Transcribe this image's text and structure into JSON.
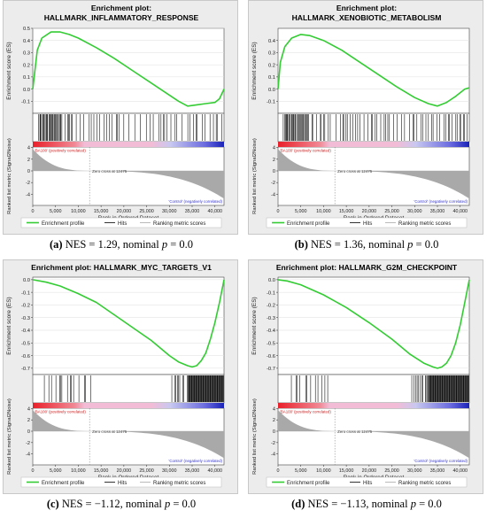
{
  "chart_data": [
    {
      "type": "line",
      "label": "a",
      "title_line1": "Enrichment plot:",
      "title_line2": "HALLMARK_INFLAMMATORY_RESPONSE",
      "caption": {
        "label": "(a)",
        "text_nes": "NES = 1.29, nominal",
        "p_symbol": "p",
        "text_p": "= 0.0"
      },
      "ylabel": "Enrichment score (ES)",
      "ylim": [
        -0.2,
        0.5
      ],
      "yticks": [
        0.5,
        0.4,
        0.3,
        0.2,
        0.1,
        0.0,
        -0.1
      ],
      "x": [
        0,
        1000,
        2000,
        4000,
        6000,
        8000,
        10000,
        14000,
        18000,
        22000,
        26000,
        30000,
        32000,
        34000,
        36000,
        38000,
        40000,
        41000,
        42000
      ],
      "es": [
        0.0,
        0.32,
        0.42,
        0.47,
        0.47,
        0.45,
        0.42,
        0.34,
        0.25,
        0.15,
        0.05,
        -0.05,
        -0.1,
        -0.14,
        -0.13,
        -0.12,
        -0.11,
        -0.08,
        0.0
      ],
      "hits_segments": [
        [
          1000,
          6500,
          0.9
        ],
        [
          6500,
          9000,
          0.6
        ],
        [
          9000,
          17000,
          0.35
        ],
        [
          17000,
          24000,
          0.3
        ],
        [
          24000,
          42000,
          0.35
        ]
      ],
      "bar_color_neutral": "#f2bcd6",
      "pos_label": "'BA100' (positively correlated)",
      "neg_label": "'Control' (negatively correlated)",
      "zero_cross": "Zero cross at 12475",
      "metric_ylabel": "Ranked list metric (Signal2Noise)",
      "metric_yticks": [
        "4",
        "2",
        "0",
        "-2",
        "-4"
      ],
      "xlabel": "Rank in Ordered Dataset",
      "xticks": [
        "0",
        "5,000",
        "10,000",
        "15,000",
        "20,000",
        "25,000",
        "30,000",
        "35,000",
        "40,000"
      ],
      "legend": [
        "Enrichment profile",
        "Hits",
        "Ranking metric scores"
      ],
      "colors": {
        "es": "#33cc33",
        "pos": "#e8202a",
        "neg": "#1a23b8",
        "metric": "#a9a9a9",
        "neg_label": "#3333cc",
        "pos_label": "#cc2222"
      }
    },
    {
      "type": "line",
      "label": "b",
      "title_line1": "Enrichment plot:",
      "title_line2": "HALLMARK_XENOBIOTIC_METABOLISM",
      "caption": {
        "label": "(b)",
        "text_nes": "NES = 1.36, nominal",
        "p_symbol": "p",
        "text_p": "= 0.0"
      },
      "ylabel": "Enrichment score (ES)",
      "ylim": [
        -0.2,
        0.5
      ],
      "yticks": [
        0.4,
        0.3,
        0.2,
        0.1,
        0.0,
        -0.1
      ],
      "x": [
        0,
        500,
        1500,
        3000,
        5000,
        7000,
        10000,
        14000,
        18000,
        22000,
        26000,
        30000,
        33000,
        35000,
        37000,
        39000,
        41000,
        42000
      ],
      "es": [
        0.0,
        0.22,
        0.35,
        0.42,
        0.45,
        0.44,
        0.4,
        0.32,
        0.22,
        0.12,
        0.02,
        -0.07,
        -0.12,
        -0.14,
        -0.11,
        -0.06,
        0.0,
        0.01
      ],
      "hits_segments": [
        [
          1000,
          7000,
          0.9
        ],
        [
          7000,
          12000,
          0.5
        ],
        [
          12000,
          19000,
          0.45
        ],
        [
          19000,
          28000,
          0.4
        ],
        [
          28000,
          42000,
          0.5
        ]
      ],
      "bar_color_neutral": "#f2bcd6",
      "pos_label": "'BA100' (positively correlated)",
      "neg_label": "'Control' (negatively correlated)",
      "zero_cross": "Zero cross at 12475",
      "metric_ylabel": "Ranked list metric (Signal2Noise)",
      "metric_yticks": [
        "4",
        "2",
        "0",
        "-2",
        "-4"
      ],
      "xlabel": "Rank in Ordered Dataset",
      "xticks": [
        "0",
        "5,000",
        "10,000",
        "15,000",
        "20,000",
        "25,000",
        "30,000",
        "35,000",
        "40,000"
      ],
      "legend": [
        "Enrichment profile",
        "Hits",
        "Ranking metric scores"
      ],
      "colors": {
        "es": "#33cc33",
        "pos": "#e8202a",
        "neg": "#1a23b8",
        "metric": "#a9a9a9",
        "neg_label": "#3333cc",
        "pos_label": "#cc2222"
      }
    },
    {
      "type": "line",
      "label": "c",
      "title_line1": "Enrichment plot: HALLMARK_MYC_TARGETS_V1",
      "title_line2": "",
      "caption": {
        "label": "(c)",
        "text_nes": "NES = −1.12, nominal",
        "p_symbol": "p",
        "text_p": "= 0.0"
      },
      "ylabel": "Enrichment score (ES)",
      "ylim": [
        -0.75,
        0.02
      ],
      "yticks": [
        0.0,
        -0.1,
        -0.2,
        -0.3,
        -0.4,
        -0.5,
        -0.6,
        -0.7
      ],
      "x": [
        0,
        3000,
        6000,
        10000,
        14000,
        18000,
        22000,
        26000,
        30000,
        32000,
        34000,
        35000,
        36000,
        37000,
        38000,
        39000,
        40000,
        41000,
        42000
      ],
      "es": [
        0.0,
        -0.02,
        -0.05,
        -0.11,
        -0.18,
        -0.28,
        -0.38,
        -0.48,
        -0.6,
        -0.65,
        -0.68,
        -0.69,
        -0.68,
        -0.64,
        -0.58,
        -0.47,
        -0.34,
        -0.18,
        0.0
      ],
      "hits_segments": [
        [
          2000,
          13000,
          0.35
        ],
        [
          30000,
          34000,
          0.6
        ],
        [
          34000,
          42000,
          1.0
        ]
      ],
      "bar_color_neutral": "#f2bcd6",
      "pos_label": "'BA100' (positively correlated)",
      "neg_label": "'Control' (negatively correlated)",
      "zero_cross": "Zero cross at 12475",
      "metric_ylabel": "Ranked list metric (Signal2Noise)",
      "metric_yticks": [
        "4",
        "2",
        "0",
        "-2",
        "-4"
      ],
      "xlabel": "Rank in Ordered Dataset",
      "xticks": [
        "0",
        "5,000",
        "10,000",
        "15,000",
        "20,000",
        "25,000",
        "30,000",
        "35,000",
        "40,000"
      ],
      "legend": [
        "Enrichment profile",
        "Hits",
        "Ranking metric scores"
      ],
      "colors": {
        "es": "#33cc33",
        "pos": "#e8202a",
        "neg": "#1a23b8",
        "metric": "#a9a9a9",
        "neg_label": "#3333cc",
        "pos_label": "#cc2222"
      }
    },
    {
      "type": "line",
      "label": "d",
      "title_line1": "Enrichment plot: HALLMARK_G2M_CHECKPOINT",
      "title_line2": "",
      "caption": {
        "label": "(d)",
        "text_nes": "NES = −1.13, nominal",
        "p_symbol": "p",
        "text_p": "= 0.0"
      },
      "ylabel": "Enrichment score (ES)",
      "ylim": [
        -0.75,
        0.02
      ],
      "yticks": [
        0.0,
        -0.1,
        -0.2,
        -0.3,
        -0.4,
        -0.5,
        -0.6,
        -0.7
      ],
      "x": [
        0,
        2000,
        5000,
        10000,
        15000,
        20000,
        25000,
        29000,
        32000,
        34000,
        35000,
        36000,
        37000,
        38000,
        39000,
        40000,
        41000,
        42000
      ],
      "es": [
        0.0,
        -0.01,
        -0.04,
        -0.12,
        -0.22,
        -0.34,
        -0.47,
        -0.59,
        -0.66,
        -0.69,
        -0.7,
        -0.69,
        -0.66,
        -0.6,
        -0.5,
        -0.36,
        -0.18,
        0.0
      ],
      "hits_segments": [
        [
          2000,
          12000,
          0.25
        ],
        [
          29000,
          33000,
          0.7
        ],
        [
          33000,
          42000,
          1.0
        ]
      ],
      "bar_color_neutral": "#f2bcd6",
      "pos_label": "'BA100' (positively correlated)",
      "neg_label": "'Control' (negatively correlated)",
      "zero_cross": "Zero cross at 12475",
      "metric_ylabel": "Ranked list metric (Signal2Noise)",
      "metric_yticks": [
        "4",
        "2",
        "0",
        "-2",
        "-4"
      ],
      "xlabel": "Rank in Ordered Dataset",
      "xticks": [
        "0",
        "5,000",
        "10,000",
        "15,000",
        "20,000",
        "25,000",
        "30,000",
        "35,000",
        "40,000"
      ],
      "legend": [
        "Enrichment profile",
        "Hits",
        "Ranking metric scores"
      ],
      "colors": {
        "es": "#33cc33",
        "pos": "#e8202a",
        "neg": "#1a23b8",
        "metric": "#a9a9a9",
        "neg_label": "#3333cc",
        "pos_label": "#cc2222"
      }
    }
  ]
}
